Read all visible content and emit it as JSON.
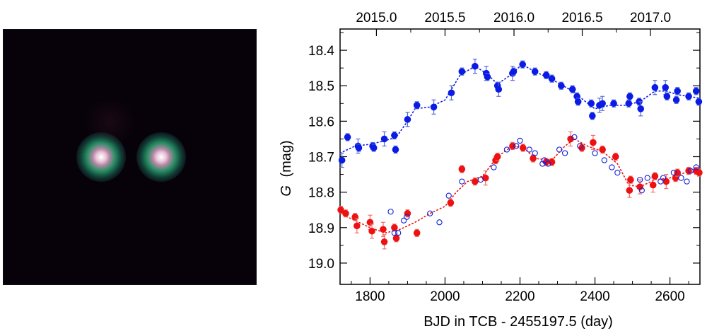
{
  "chart_data": {
    "type": "scatter",
    "title": "",
    "xlabel": "BJD in TCB - 2455197.5 (day)",
    "ylabel_symbol": "G",
    "ylabel_unit": "(mag)",
    "xlim": [
      1720,
      2680
    ],
    "ylim": [
      19.06,
      18.34
    ],
    "y_inverted": true,
    "grid": false,
    "x_ticks": [
      1800,
      2000,
      2200,
      2400,
      2600
    ],
    "y_ticks": [
      18.4,
      18.5,
      18.6,
      18.7,
      18.8,
      18.9,
      19.0
    ],
    "top_axis_ticks": [
      {
        "label": "2015.0",
        "x": 1817
      },
      {
        "label": "2015.5",
        "x": 2000
      },
      {
        "label": "2016.0",
        "x": 2184
      },
      {
        "label": "2016.5",
        "x": 2366
      },
      {
        "label": "2017.0",
        "x": 2548
      }
    ],
    "series": [
      {
        "color": "#0a1be6",
        "marker": "filled-circle",
        "has_errorbars": true,
        "has_dotted_fit": true,
        "points": [
          {
            "x": 1725,
            "y": 18.71,
            "e": 0.02
          },
          {
            "x": 1740,
            "y": 18.645,
            "e": 0.01
          },
          {
            "x": 1768,
            "y": 18.67,
            "e": 0.02
          },
          {
            "x": 1770,
            "y": 18.675,
            "e": 0.01
          },
          {
            "x": 1807,
            "y": 18.67,
            "e": 0.01
          },
          {
            "x": 1810,
            "y": 18.675,
            "e": 0.01
          },
          {
            "x": 1838,
            "y": 18.65,
            "e": 0.02
          },
          {
            "x": 1865,
            "y": 18.64,
            "e": 0.01
          },
          {
            "x": 1868,
            "y": 18.68,
            "e": 0.01
          },
          {
            "x": 1900,
            "y": 18.595,
            "e": 0.02
          },
          {
            "x": 1925,
            "y": 18.555,
            "e": 0.01
          },
          {
            "x": 1970,
            "y": 18.56,
            "e": 0.02
          },
          {
            "x": 2017,
            "y": 18.52,
            "e": 0.02
          },
          {
            "x": 2045,
            "y": 18.46,
            "e": 0.01
          },
          {
            "x": 2080,
            "y": 18.445,
            "e": 0.02
          },
          {
            "x": 2110,
            "y": 18.465,
            "e": 0.02
          },
          {
            "x": 2113,
            "y": 18.475,
            "e": 0.01
          },
          {
            "x": 2140,
            "y": 18.5,
            "e": 0.01
          },
          {
            "x": 2143,
            "y": 18.51,
            "e": 0.02
          },
          {
            "x": 2180,
            "y": 18.465,
            "e": 0.02
          },
          {
            "x": 2183,
            "y": 18.46,
            "e": 0.01
          },
          {
            "x": 2207,
            "y": 18.44,
            "e": 0.01
          },
          {
            "x": 2240,
            "y": 18.46,
            "e": 0.01
          },
          {
            "x": 2270,
            "y": 18.47,
            "e": 0.01
          },
          {
            "x": 2285,
            "y": 18.48,
            "e": 0.01
          },
          {
            "x": 2310,
            "y": 18.5,
            "e": 0.01
          },
          {
            "x": 2340,
            "y": 18.51,
            "e": 0.01
          },
          {
            "x": 2352,
            "y": 18.53,
            "e": 0.01
          },
          {
            "x": 2355,
            "y": 18.545,
            "e": 0.01
          },
          {
            "x": 2390,
            "y": 18.55,
            "e": 0.01
          },
          {
            "x": 2393,
            "y": 18.585,
            "e": 0.01
          },
          {
            "x": 2412,
            "y": 18.555,
            "e": 0.02
          },
          {
            "x": 2420,
            "y": 18.55,
            "e": 0.02
          },
          {
            "x": 2450,
            "y": 18.55,
            "e": 0.01
          },
          {
            "x": 2490,
            "y": 18.55,
            "e": 0.01
          },
          {
            "x": 2493,
            "y": 18.53,
            "e": 0.01
          },
          {
            "x": 2518,
            "y": 18.545,
            "e": 0.01
          },
          {
            "x": 2522,
            "y": 18.565,
            "e": 0.02
          },
          {
            "x": 2560,
            "y": 18.505,
            "e": 0.02
          },
          {
            "x": 2588,
            "y": 18.505,
            "e": 0.02
          },
          {
            "x": 2592,
            "y": 18.53,
            "e": 0.01
          },
          {
            "x": 2617,
            "y": 18.54,
            "e": 0.01
          },
          {
            "x": 2620,
            "y": 18.515,
            "e": 0.01
          },
          {
            "x": 2650,
            "y": 18.53,
            "e": 0.01
          },
          {
            "x": 2670,
            "y": 18.515,
            "e": 0.01
          },
          {
            "x": 2677,
            "y": 18.545,
            "e": 0.01
          }
        ],
        "fit": [
          {
            "x": 1720,
            "y": 18.69
          },
          {
            "x": 1760,
            "y": 18.67
          },
          {
            "x": 1800,
            "y": 18.665
          },
          {
            "x": 1840,
            "y": 18.655
          },
          {
            "x": 1870,
            "y": 18.645
          },
          {
            "x": 1900,
            "y": 18.6
          },
          {
            "x": 1920,
            "y": 18.565
          },
          {
            "x": 1960,
            "y": 18.56
          },
          {
            "x": 2000,
            "y": 18.54
          },
          {
            "x": 2040,
            "y": 18.47
          },
          {
            "x": 2080,
            "y": 18.445
          },
          {
            "x": 2110,
            "y": 18.465
          },
          {
            "x": 2140,
            "y": 18.495
          },
          {
            "x": 2175,
            "y": 18.47
          },
          {
            "x": 2205,
            "y": 18.44
          },
          {
            "x": 2240,
            "y": 18.46
          },
          {
            "x": 2290,
            "y": 18.485
          },
          {
            "x": 2340,
            "y": 18.515
          },
          {
            "x": 2375,
            "y": 18.545
          },
          {
            "x": 2400,
            "y": 18.565
          },
          {
            "x": 2440,
            "y": 18.555
          },
          {
            "x": 2480,
            "y": 18.555
          },
          {
            "x": 2520,
            "y": 18.545
          },
          {
            "x": 2560,
            "y": 18.515
          },
          {
            "x": 2590,
            "y": 18.515
          },
          {
            "x": 2620,
            "y": 18.525
          },
          {
            "x": 2650,
            "y": 18.53
          },
          {
            "x": 2680,
            "y": 18.535
          }
        ]
      },
      {
        "color": "#ee1111",
        "marker": "filled-circle",
        "has_errorbars": true,
        "has_dotted_fit": true,
        "points": [
          {
            "x": 1722,
            "y": 18.85,
            "e": 0.01
          },
          {
            "x": 1735,
            "y": 18.86,
            "e": 0.01
          },
          {
            "x": 1760,
            "y": 18.87,
            "e": 0.01
          },
          {
            "x": 1765,
            "y": 18.895,
            "e": 0.02
          },
          {
            "x": 1800,
            "y": 18.885,
            "e": 0.02
          },
          {
            "x": 1805,
            "y": 18.91,
            "e": 0.02
          },
          {
            "x": 1835,
            "y": 18.905,
            "e": 0.02
          },
          {
            "x": 1838,
            "y": 18.94,
            "e": 0.02
          },
          {
            "x": 1865,
            "y": 18.9,
            "e": 0.01
          },
          {
            "x": 1870,
            "y": 18.93,
            "e": 0.01
          },
          {
            "x": 1900,
            "y": 18.86,
            "e": 0.01
          },
          {
            "x": 1925,
            "y": 18.915,
            "e": 0.01
          },
          {
            "x": 2015,
            "y": 18.83,
            "e": 0.01
          },
          {
            "x": 2045,
            "y": 18.735,
            "e": 0.01
          },
          {
            "x": 2080,
            "y": 18.77,
            "e": 0.01
          },
          {
            "x": 2108,
            "y": 18.76,
            "e": 0.02
          },
          {
            "x": 2135,
            "y": 18.71,
            "e": 0.01
          },
          {
            "x": 2140,
            "y": 18.7,
            "e": 0.01
          },
          {
            "x": 2180,
            "y": 18.67,
            "e": 0.01
          },
          {
            "x": 2208,
            "y": 18.675,
            "e": 0.01
          },
          {
            "x": 2235,
            "y": 18.705,
            "e": 0.01
          },
          {
            "x": 2270,
            "y": 18.715,
            "e": 0.01
          },
          {
            "x": 2285,
            "y": 18.715,
            "e": 0.01
          },
          {
            "x": 2335,
            "y": 18.65,
            "e": 0.02
          },
          {
            "x": 2365,
            "y": 18.675,
            "e": 0.01
          },
          {
            "x": 2395,
            "y": 18.66,
            "e": 0.02
          },
          {
            "x": 2420,
            "y": 18.68,
            "e": 0.01
          },
          {
            "x": 2455,
            "y": 18.7,
            "e": 0.01
          },
          {
            "x": 2492,
            "y": 18.795,
            "e": 0.02
          },
          {
            "x": 2495,
            "y": 18.765,
            "e": 0.01
          },
          {
            "x": 2520,
            "y": 18.785,
            "e": 0.02
          },
          {
            "x": 2555,
            "y": 18.78,
            "e": 0.02
          },
          {
            "x": 2560,
            "y": 18.755,
            "e": 0.01
          },
          {
            "x": 2590,
            "y": 18.77,
            "e": 0.02
          },
          {
            "x": 2615,
            "y": 18.76,
            "e": 0.01
          },
          {
            "x": 2620,
            "y": 18.745,
            "e": 0.01
          },
          {
            "x": 2650,
            "y": 18.74,
            "e": 0.01
          },
          {
            "x": 2670,
            "y": 18.74,
            "e": 0.01
          },
          {
            "x": 2678,
            "y": 18.745,
            "e": 0.01
          }
        ],
        "fit": [
          {
            "x": 1720,
            "y": 18.86
          },
          {
            "x": 1760,
            "y": 18.88
          },
          {
            "x": 1800,
            "y": 18.9
          },
          {
            "x": 1840,
            "y": 18.915
          },
          {
            "x": 1880,
            "y": 18.905
          },
          {
            "x": 1920,
            "y": 18.885
          },
          {
            "x": 1960,
            "y": 18.86
          },
          {
            "x": 2000,
            "y": 18.84
          },
          {
            "x": 2030,
            "y": 18.8
          },
          {
            "x": 2060,
            "y": 18.77
          },
          {
            "x": 2100,
            "y": 18.755
          },
          {
            "x": 2140,
            "y": 18.7
          },
          {
            "x": 2180,
            "y": 18.67
          },
          {
            "x": 2210,
            "y": 18.675
          },
          {
            "x": 2240,
            "y": 18.705
          },
          {
            "x": 2285,
            "y": 18.71
          },
          {
            "x": 2320,
            "y": 18.67
          },
          {
            "x": 2345,
            "y": 18.65
          },
          {
            "x": 2380,
            "y": 18.67
          },
          {
            "x": 2420,
            "y": 18.685
          },
          {
            "x": 2460,
            "y": 18.72
          },
          {
            "x": 2490,
            "y": 18.78
          },
          {
            "x": 2520,
            "y": 18.785
          },
          {
            "x": 2560,
            "y": 18.765
          },
          {
            "x": 2600,
            "y": 18.76
          },
          {
            "x": 2640,
            "y": 18.745
          },
          {
            "x": 2680,
            "y": 18.74
          }
        ]
      },
      {
        "color": "#1020dd",
        "marker": "open-circle",
        "has_errorbars": false,
        "has_dotted_fit": false,
        "points": [
          {
            "x": 1855,
            "y": 18.855
          },
          {
            "x": 1865,
            "y": 18.915
          },
          {
            "x": 1875,
            "y": 18.915
          },
          {
            "x": 1890,
            "y": 18.88
          },
          {
            "x": 1898,
            "y": 18.87
          },
          {
            "x": 1960,
            "y": 18.86
          },
          {
            "x": 1985,
            "y": 18.885
          },
          {
            "x": 2010,
            "y": 18.81
          },
          {
            "x": 2045,
            "y": 18.77
          },
          {
            "x": 2095,
            "y": 18.765
          },
          {
            "x": 2130,
            "y": 18.73
          },
          {
            "x": 2165,
            "y": 18.68
          },
          {
            "x": 2190,
            "y": 18.67
          },
          {
            "x": 2200,
            "y": 18.655
          },
          {
            "x": 2225,
            "y": 18.68
          },
          {
            "x": 2240,
            "y": 18.69
          },
          {
            "x": 2260,
            "y": 18.72
          },
          {
            "x": 2265,
            "y": 18.71
          },
          {
            "x": 2275,
            "y": 18.72
          },
          {
            "x": 2305,
            "y": 18.68
          },
          {
            "x": 2320,
            "y": 18.69
          },
          {
            "x": 2345,
            "y": 18.645
          },
          {
            "x": 2360,
            "y": 18.67
          },
          {
            "x": 2400,
            "y": 18.69
          },
          {
            "x": 2425,
            "y": 18.71
          },
          {
            "x": 2445,
            "y": 18.73
          },
          {
            "x": 2460,
            "y": 18.745
          },
          {
            "x": 2520,
            "y": 18.765
          },
          {
            "x": 2525,
            "y": 18.795
          },
          {
            "x": 2540,
            "y": 18.76
          },
          {
            "x": 2575,
            "y": 18.77
          },
          {
            "x": 2582,
            "y": 18.76
          },
          {
            "x": 2610,
            "y": 18.745
          },
          {
            "x": 2630,
            "y": 18.76
          },
          {
            "x": 2645,
            "y": 18.77
          },
          {
            "x": 2655,
            "y": 18.74
          },
          {
            "x": 2670,
            "y": 18.73
          }
        ]
      }
    ]
  },
  "image_panel": {
    "stars": [
      {
        "name": "star-left",
        "core": "#ffffff",
        "mid": "#d98fb0",
        "ring": "#2d9a6c"
      },
      {
        "name": "star-right",
        "core": "#ffffff",
        "mid": "#d98fb0",
        "ring": "#2d9a6c"
      }
    ],
    "background": "#07020a"
  }
}
